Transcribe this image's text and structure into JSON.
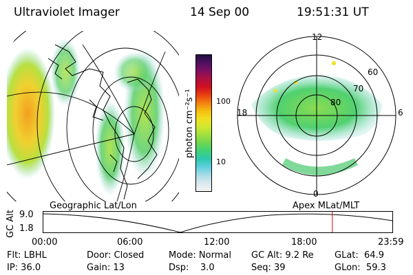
{
  "header": {
    "instrument": "Ultraviolet Imager",
    "date": "14 Sep 00",
    "time": "19:51:31 UT"
  },
  "colorbar": {
    "unit_label": "photon cm⁻²s⁻¹",
    "ticks": [
      "100",
      "10"
    ],
    "scale": "log",
    "colors": [
      "#f4f4f4",
      "#d8e8ee",
      "#a8dce6",
      "#5fd0e0",
      "#30c8b0",
      "#3ed27a",
      "#6ed650",
      "#9ee040",
      "#cce830",
      "#f0e020",
      "#f4c010",
      "#f48010",
      "#e84010",
      "#d01020",
      "#b01040",
      "#801060",
      "#501060",
      "#201040"
    ]
  },
  "polar": {
    "lat_labels": [
      "60",
      "70",
      "80"
    ],
    "mlt_labels": {
      "top": "12",
      "left": "18",
      "right": "6",
      "bottom": "0"
    }
  },
  "panel_labels": {
    "left": "Geographic Lat/Lon",
    "right": "Apex MLat/MLT"
  },
  "altitude_plot": {
    "axis_label": "GC Alt",
    "y_ticks": [
      "9.0",
      "1.8"
    ],
    "x_ticks": [
      "00:00",
      "06:00",
      "12:00",
      "18:00",
      "23:59"
    ],
    "marker_color": "#dd0000",
    "marker_fraction": 0.828
  },
  "footer": {
    "col1": [
      "Flt: LBHL",
      "IP: 36.0"
    ],
    "col2": [
      "Door: Closed",
      "Gain: 13"
    ],
    "col3": [
      "Mode: Normal",
      "Dsp:    3.0"
    ],
    "col4": [
      "GC Alt: 9.2 Re",
      "Seq: 39"
    ],
    "col5": [
      "GLat:  64.9",
      "GLon:  59.3"
    ]
  }
}
